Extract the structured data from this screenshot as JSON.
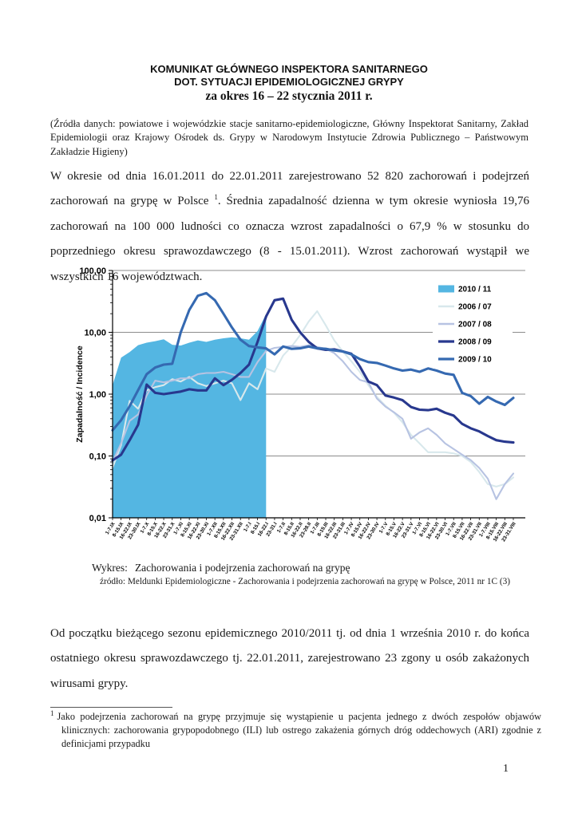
{
  "header": {
    "title_line1": "KOMUNIKAT GŁÓWNEGO INSPEKTORA SANITARNEGO",
    "title_line2": "DOT. SYTUACJI EPIDEMIOLOGICZNEJ GRYPY",
    "title_line3": "za okres 16 – 22 stycznia 2011 r.",
    "sources_note": "(Źródła danych: powiatowe i wojewódzkie stacje sanitarno-epidemiologiczne, Główny Inspektorat Sanitarny, Zakład Epidemiologii oraz Krajowy Ośrodek ds. Grypy w Narodowym Instytucie Zdrowia Publicznego – Państwowym Zakładzie Higieny)"
  },
  "paragraph1": {
    "before_sup": "W okresie od dnia 16.01.2011 do 22.01.2011 zarejestrowano 52 820 zachorowań i podejrzeń zachorowań na grypę w Polsce",
    "sup": "1",
    "after_sup": ". Średnia zapadalność dzienna w tym okresie wyniosła 19,76 zachorowań na 100 000 ludności co oznacza wzrost zapadalności o 67,9 % w stosunku do poprzedniego okresu sprawozdawczego (8 - 15.01.2011). Wzrost zachorowań wystąpił we wszystkich 16 województwach."
  },
  "chart_caption": {
    "label": "Wykres:",
    "title": "Zachorowania i podejrzenia zachorowań na grypę",
    "source": "źródło: Meldunki Epidemiologiczne - Zachorowania i podejrzenia zachorowań na grypę w Polsce, 2011 nr 1C (3)"
  },
  "paragraph2": "Od początku bieżącego sezonu epidemicznego 2010/2011 tj. od dnia 1 września 2010 r. do końca ostatniego okresu sprawozdawczego tj. 22.01.2011, zarejestrowano 23 zgony u osób zakażonych wirusami grypy.",
  "footnote": {
    "marker": "1",
    "text": "Jako podejrzenia zachorowań na grypę przyjmuje się wystąpienie u pacjenta jednego z dwóch zespołów objawów klinicznych: zachorowania grypopodobnego (ILI) lub ostrego zakażenia górnych dróg oddechowych (ARI) zgodnie z definicjami przypadku"
  },
  "page_number": "1",
  "chart_data": {
    "type": "line",
    "title": "",
    "ylabel": "Zapadalność / Incidence",
    "xlabel": "",
    "y_scale": "log",
    "ylim": [
      0.01,
      100
    ],
    "y_tick_labels": [
      "100,00",
      "10,00",
      "1,00",
      "0,10",
      "0,01"
    ],
    "y_tick_values": [
      100,
      10,
      1,
      0.1,
      0.01
    ],
    "grid": true,
    "legend_position": "top-right",
    "colors": {
      "grid": "#8c8c8c",
      "axis": "#000000",
      "legend_bg": "#ffffff"
    },
    "categories": [
      "1-7.IX",
      "8-15.IX",
      "16-22.IX",
      "23-30.IX",
      "1-7.X",
      "8-15.X",
      "16-22.X",
      "23-31.X",
      "1-7.XI",
      "8-15.XI",
      "16-22.XI",
      "23-30.XI",
      "1-7.XII",
      "8-15.XII",
      "16-22.XII",
      "23-31.XII",
      "1-7.I",
      "8-15.I",
      "16-22.I",
      "23-31.I",
      "1-7.II",
      "8-15.II",
      "16-22.II",
      "23-28.II",
      "1-7.III",
      "8-15.III",
      "16-22.III",
      "23-31.III",
      "1-7.IV",
      "8-15.IV",
      "16-22.IV",
      "23-30.IV",
      "1-7.V",
      "8-15.V",
      "16-22.V",
      "23-31.V",
      "1-7.VI",
      "8-15.VI",
      "16-22.VI",
      "23-30.VI",
      "1-7.VII",
      "8-15.VII",
      "16-22.VII",
      "23-31.VII",
      "1-7.VIII",
      "8-15.VIII",
      "16-22.VIII",
      "23-31.VIII"
    ],
    "series": [
      {
        "name": "2010 / 11",
        "style": "area",
        "color": "#54b6e2",
        "values": [
          1.4,
          3.9,
          4.8,
          6.2,
          6.8,
          7.2,
          7.7,
          6.3,
          6.1,
          6.8,
          7.4,
          7.0,
          7.6,
          8.0,
          8.3,
          8.0,
          7.6,
          10.5,
          19.76,
          null,
          null,
          null,
          null,
          null,
          null,
          null,
          null,
          null,
          null,
          null,
          null,
          null,
          null,
          null,
          null,
          null,
          null,
          null,
          null,
          null,
          null,
          null,
          null,
          null,
          null,
          null,
          null,
          null
        ]
      },
      {
        "name": "2006 / 07",
        "style": "line",
        "color": "#d8e8ec",
        "values": [
          0.065,
          0.15,
          0.78,
          0.58,
          1.15,
          1.3,
          1.4,
          1.75,
          1.6,
          1.9,
          1.5,
          1.35,
          1.5,
          1.65,
          1.5,
          0.8,
          1.5,
          1.2,
          2.6,
          2.3,
          4.2,
          5.9,
          9.0,
          15,
          22,
          13,
          7.4,
          4.9,
          3.4,
          2.3,
          1.4,
          0.9,
          0.65,
          0.5,
          0.35,
          0.22,
          0.16,
          0.115,
          0.115,
          0.115,
          0.11,
          0.1,
          0.08,
          0.055,
          0.035,
          0.032,
          0.035,
          0.045
        ]
      },
      {
        "name": "2007 / 08",
        "style": "line",
        "color": "#b7c3e2",
        "values": [
          0.08,
          0.16,
          0.37,
          0.47,
          0.95,
          1.65,
          1.55,
          1.65,
          1.8,
          1.8,
          2.1,
          2.2,
          2.2,
          2.3,
          2.1,
          1.9,
          1.9,
          3.3,
          5.0,
          5.6,
          5.8,
          6.0,
          5.8,
          6.2,
          5.8,
          5.4,
          4.6,
          3.4,
          2.3,
          1.7,
          1.55,
          0.85,
          0.63,
          0.51,
          0.4,
          0.19,
          0.24,
          0.28,
          0.22,
          0.16,
          0.13,
          0.105,
          0.086,
          0.064,
          0.043,
          0.02,
          0.035,
          0.052
        ]
      },
      {
        "name": "2008 / 09",
        "style": "line",
        "color": "#28388e",
        "values": [
          0.085,
          0.105,
          0.18,
          0.32,
          1.43,
          1.05,
          1.0,
          1.05,
          1.1,
          1.2,
          1.15,
          1.15,
          1.8,
          1.4,
          1.7,
          2.2,
          3.0,
          7.0,
          18,
          33,
          35,
          16,
          10,
          7.0,
          5.5,
          5.2,
          5.3,
          4.9,
          4.5,
          2.8,
          1.6,
          1.4,
          0.95,
          0.88,
          0.8,
          0.62,
          0.56,
          0.55,
          0.58,
          0.5,
          0.45,
          0.33,
          0.28,
          0.25,
          0.21,
          0.18,
          0.17,
          0.165
        ]
      },
      {
        "name": "2009 / 10",
        "style": "line",
        "color": "#3569b1",
        "values": [
          0.26,
          0.38,
          0.64,
          1.16,
          2.1,
          2.7,
          3.0,
          3.1,
          10,
          23,
          39,
          43,
          33,
          20,
          12,
          7.6,
          6.0,
          5.7,
          5.5,
          4.4,
          5.9,
          5.4,
          5.5,
          5.9,
          5.5,
          5.4,
          5.1,
          4.9,
          4.4,
          3.7,
          3.3,
          3.2,
          2.9,
          2.6,
          2.4,
          2.5,
          2.3,
          2.6,
          2.4,
          2.15,
          2.05,
          1.05,
          0.93,
          0.7,
          0.9,
          0.76,
          0.67,
          0.87
        ]
      }
    ]
  }
}
